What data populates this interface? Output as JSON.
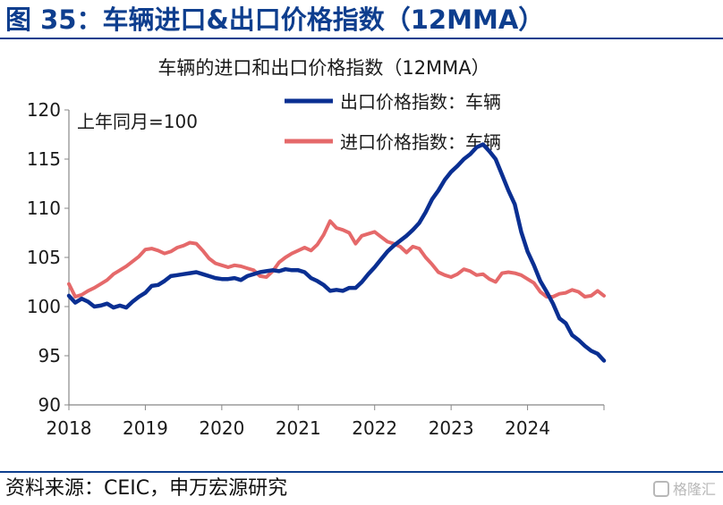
{
  "figure_title": "图 35：车辆进口&出口价格指数（12MMA）",
  "source_note": "资料来源：CEIC，申万宏源研究",
  "watermark_text": "格隆汇",
  "watermark_icon": "logo-icon",
  "colors": {
    "title_blue": "#0E3E8E",
    "export_line": "#0A2F92",
    "import_line": "#E5696A",
    "axis": "#888888"
  },
  "chart_data": {
    "type": "line",
    "title": "车辆的进口和出口价格指数（12MMA）",
    "annotation": "上年同月=100",
    "xlabel": "",
    "ylabel": "",
    "ylim": [
      90,
      120
    ],
    "yticks": [
      90,
      95,
      100,
      105,
      110,
      115,
      120
    ],
    "xlim": [
      2018,
      2025
    ],
    "xticks": [
      2018,
      2019,
      2020,
      2021,
      2022,
      2023,
      2024
    ],
    "legend_position": "top-right",
    "grid": false,
    "series": [
      {
        "name": "出口价格指数：车辆",
        "color": "#0A2F92",
        "points": [
          [
            2018.0,
            101.1
          ],
          [
            2018.083,
            100.4
          ],
          [
            2018.167,
            100.8
          ],
          [
            2018.25,
            100.5
          ],
          [
            2018.333,
            100.0
          ],
          [
            2018.417,
            100.1
          ],
          [
            2018.5,
            100.3
          ],
          [
            2018.583,
            99.9
          ],
          [
            2018.667,
            100.1
          ],
          [
            2018.75,
            99.9
          ],
          [
            2018.833,
            100.5
          ],
          [
            2018.917,
            101.0
          ],
          [
            2019.0,
            101.4
          ],
          [
            2019.083,
            102.1
          ],
          [
            2019.167,
            102.2
          ],
          [
            2019.25,
            102.6
          ],
          [
            2019.333,
            103.1
          ],
          [
            2019.417,
            103.2
          ],
          [
            2019.5,
            103.3
          ],
          [
            2019.583,
            103.4
          ],
          [
            2019.667,
            103.5
          ],
          [
            2019.75,
            103.3
          ],
          [
            2019.833,
            103.1
          ],
          [
            2019.917,
            102.9
          ],
          [
            2020.0,
            102.8
          ],
          [
            2020.083,
            102.8
          ],
          [
            2020.167,
            102.9
          ],
          [
            2020.25,
            102.7
          ],
          [
            2020.333,
            103.1
          ],
          [
            2020.417,
            103.3
          ],
          [
            2020.5,
            103.5
          ],
          [
            2020.583,
            103.6
          ],
          [
            2020.667,
            103.7
          ],
          [
            2020.75,
            103.6
          ],
          [
            2020.833,
            103.8
          ],
          [
            2020.917,
            103.7
          ],
          [
            2021.0,
            103.7
          ],
          [
            2021.083,
            103.5
          ],
          [
            2021.167,
            102.9
          ],
          [
            2021.25,
            102.6
          ],
          [
            2021.333,
            102.2
          ],
          [
            2021.417,
            101.6
          ],
          [
            2021.5,
            101.7
          ],
          [
            2021.583,
            101.6
          ],
          [
            2021.667,
            101.9
          ],
          [
            2021.75,
            101.9
          ],
          [
            2021.833,
            102.5
          ],
          [
            2021.917,
            103.3
          ],
          [
            2022.0,
            104.0
          ],
          [
            2022.083,
            104.8
          ],
          [
            2022.167,
            105.6
          ],
          [
            2022.25,
            106.2
          ],
          [
            2022.333,
            106.7
          ],
          [
            2022.417,
            107.2
          ],
          [
            2022.5,
            107.8
          ],
          [
            2022.583,
            108.5
          ],
          [
            2022.667,
            109.6
          ],
          [
            2022.75,
            110.9
          ],
          [
            2022.833,
            111.8
          ],
          [
            2022.917,
            112.9
          ],
          [
            2023.0,
            113.7
          ],
          [
            2023.083,
            114.3
          ],
          [
            2023.167,
            115.0
          ],
          [
            2023.25,
            115.5
          ],
          [
            2023.333,
            116.2
          ],
          [
            2023.417,
            116.5
          ],
          [
            2023.5,
            115.8
          ],
          [
            2023.583,
            115.0
          ],
          [
            2023.667,
            113.4
          ],
          [
            2023.75,
            111.8
          ],
          [
            2023.833,
            110.4
          ],
          [
            2023.917,
            107.6
          ],
          [
            2024.0,
            105.6
          ],
          [
            2024.083,
            104.2
          ],
          [
            2024.167,
            102.6
          ],
          [
            2024.25,
            101.5
          ],
          [
            2024.333,
            100.3
          ],
          [
            2024.417,
            98.8
          ],
          [
            2024.5,
            98.3
          ],
          [
            2024.583,
            97.1
          ],
          [
            2024.667,
            96.6
          ],
          [
            2024.75,
            96.0
          ],
          [
            2024.833,
            95.5
          ],
          [
            2024.917,
            95.2
          ],
          [
            2025.0,
            94.5
          ]
        ]
      },
      {
        "name": "进口价格指数：车辆",
        "color": "#E5696A",
        "points": [
          [
            2018.0,
            102.3
          ],
          [
            2018.083,
            101.0
          ],
          [
            2018.167,
            101.2
          ],
          [
            2018.25,
            101.6
          ],
          [
            2018.333,
            101.9
          ],
          [
            2018.417,
            102.3
          ],
          [
            2018.5,
            102.7
          ],
          [
            2018.583,
            103.3
          ],
          [
            2018.667,
            103.7
          ],
          [
            2018.75,
            104.1
          ],
          [
            2018.833,
            104.6
          ],
          [
            2018.917,
            105.1
          ],
          [
            2019.0,
            105.8
          ],
          [
            2019.083,
            105.9
          ],
          [
            2019.167,
            105.7
          ],
          [
            2019.25,
            105.4
          ],
          [
            2019.333,
            105.6
          ],
          [
            2019.417,
            106.0
          ],
          [
            2019.5,
            106.2
          ],
          [
            2019.583,
            106.5
          ],
          [
            2019.667,
            106.4
          ],
          [
            2019.75,
            105.7
          ],
          [
            2019.833,
            104.9
          ],
          [
            2019.917,
            104.4
          ],
          [
            2020.0,
            104.2
          ],
          [
            2020.083,
            104.0
          ],
          [
            2020.167,
            104.2
          ],
          [
            2020.25,
            104.1
          ],
          [
            2020.333,
            103.9
          ],
          [
            2020.417,
            103.7
          ],
          [
            2020.5,
            103.1
          ],
          [
            2020.583,
            103.0
          ],
          [
            2020.667,
            103.6
          ],
          [
            2020.75,
            104.5
          ],
          [
            2020.833,
            105.0
          ],
          [
            2020.917,
            105.4
          ],
          [
            2021.0,
            105.7
          ],
          [
            2021.083,
            106.0
          ],
          [
            2021.167,
            105.7
          ],
          [
            2021.25,
            106.3
          ],
          [
            2021.333,
            107.3
          ],
          [
            2021.417,
            108.7
          ],
          [
            2021.5,
            108.0
          ],
          [
            2021.583,
            107.8
          ],
          [
            2021.667,
            107.5
          ],
          [
            2021.75,
            106.4
          ],
          [
            2021.833,
            107.2
          ],
          [
            2021.917,
            107.4
          ],
          [
            2022.0,
            107.6
          ],
          [
            2022.083,
            107.1
          ],
          [
            2022.167,
            106.6
          ],
          [
            2022.25,
            106.4
          ],
          [
            2022.333,
            106.1
          ],
          [
            2022.417,
            105.5
          ],
          [
            2022.5,
            106.1
          ],
          [
            2022.583,
            105.9
          ],
          [
            2022.667,
            105.0
          ],
          [
            2022.75,
            104.3
          ],
          [
            2022.833,
            103.5
          ],
          [
            2022.917,
            103.2
          ],
          [
            2023.0,
            103.0
          ],
          [
            2023.083,
            103.3
          ],
          [
            2023.167,
            103.8
          ],
          [
            2023.25,
            103.6
          ],
          [
            2023.333,
            103.2
          ],
          [
            2023.417,
            103.3
          ],
          [
            2023.5,
            102.8
          ],
          [
            2023.583,
            102.5
          ],
          [
            2023.667,
            103.4
          ],
          [
            2023.75,
            103.5
          ],
          [
            2023.833,
            103.4
          ],
          [
            2023.917,
            103.2
          ],
          [
            2024.0,
            102.8
          ],
          [
            2024.083,
            102.4
          ],
          [
            2024.167,
            101.5
          ],
          [
            2024.25,
            101.0
          ],
          [
            2024.333,
            101.0
          ],
          [
            2024.417,
            101.3
          ],
          [
            2024.5,
            101.4
          ],
          [
            2024.583,
            101.7
          ],
          [
            2024.667,
            101.5
          ],
          [
            2024.75,
            101.0
          ],
          [
            2024.833,
            101.1
          ],
          [
            2024.917,
            101.6
          ],
          [
            2025.0,
            101.1
          ]
        ]
      }
    ]
  }
}
